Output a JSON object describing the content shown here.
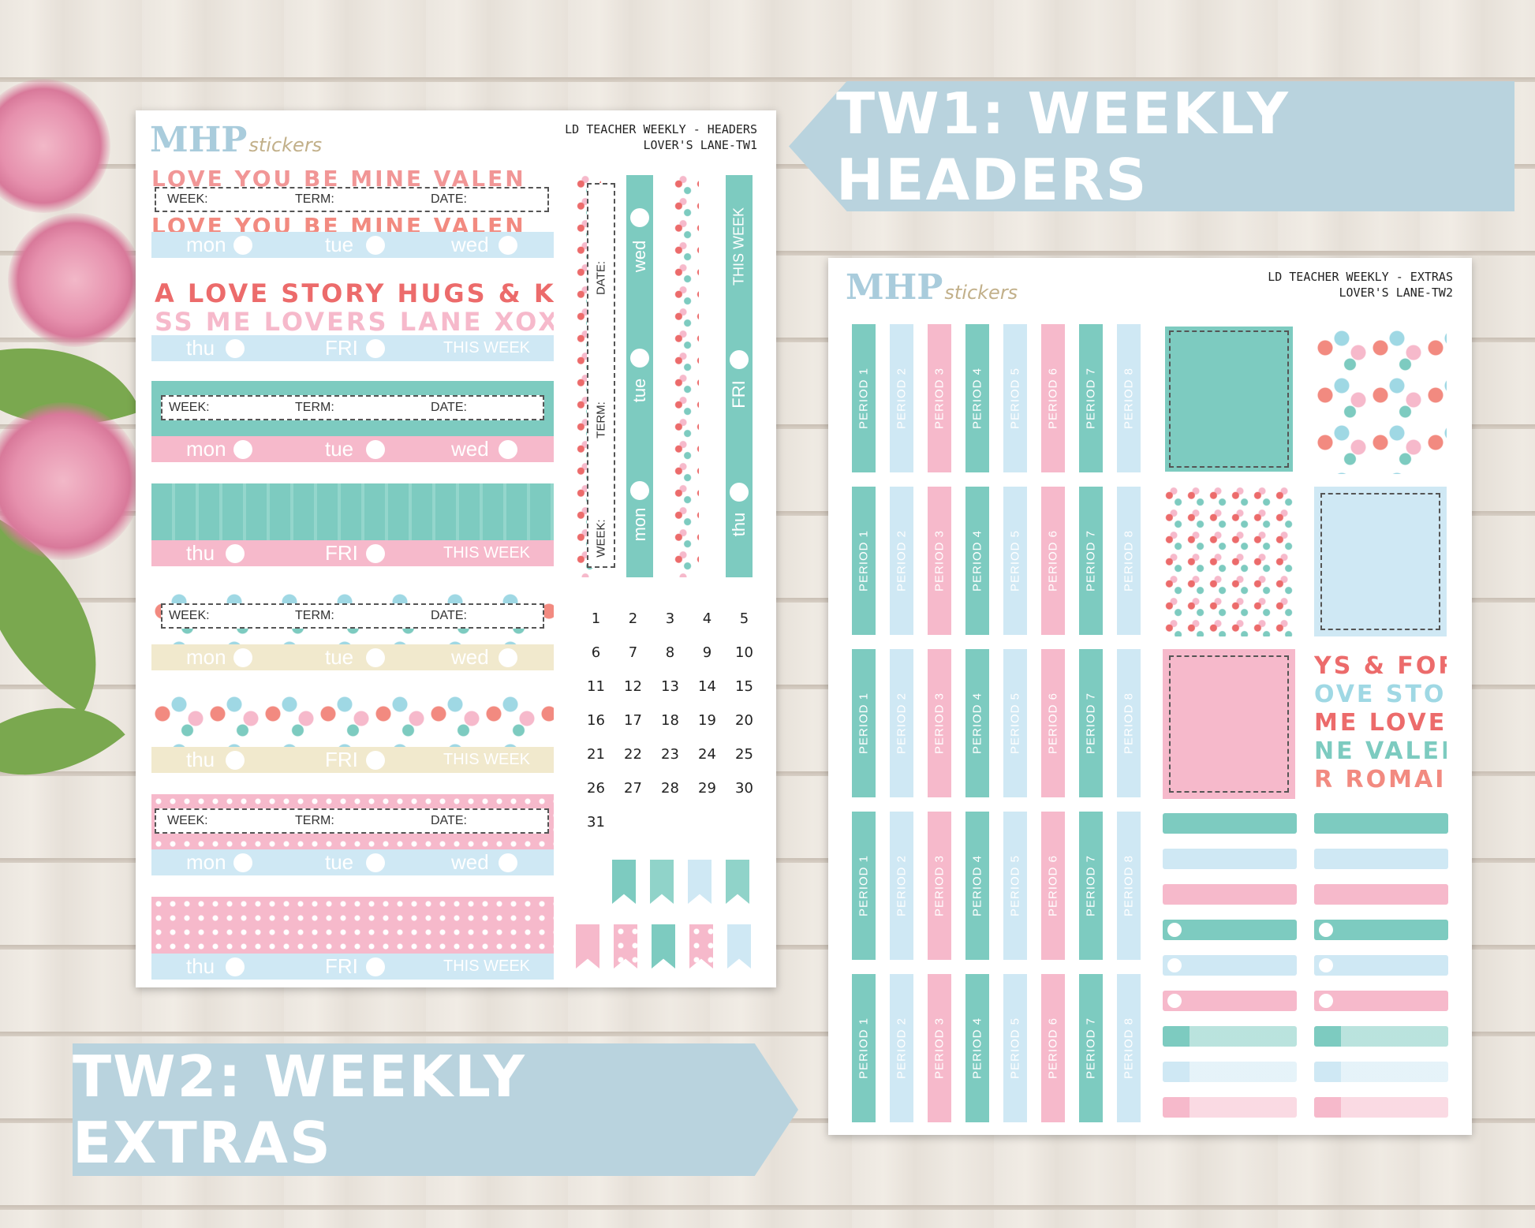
{
  "banners": {
    "tw1": "TW1: WEEKLY HEADERS",
    "tw2": "TW2: WEEKLY EXTRAS"
  },
  "sheet1": {
    "logo_main": "MHP",
    "logo_sub": "stickers",
    "title_line1": "LD TEACHER WEEKLY - HEADERS",
    "title_line2": "LOVER'S LANE-TW1",
    "fields": {
      "week": "WEEK:",
      "term": "TERM:",
      "date": "DATE:"
    },
    "days": {
      "mon": "mon",
      "tue": "tue",
      "wed": "wed",
      "thu": "thu",
      "fri": "fri",
      "fri_caps": "FRI",
      "this_week": "THIS WEEK"
    },
    "word_row1": "A LOVE STORY HUGS & KIS",
    "word_row2": "SS ME LOVERS LANE XOXO",
    "word_top": "LOVE YOU BE MINE VALEN",
    "vertical": {
      "date": "DATE:",
      "term": "TERM:",
      "week": "WEEK:",
      "mon": "mon",
      "tue": "tue",
      "wed": "wed",
      "thu": "thu",
      "fri": "FRI",
      "this_week": "THIS WEEK"
    },
    "calendar": [
      "1",
      "2",
      "3",
      "4",
      "5",
      "6",
      "7",
      "8",
      "9",
      "10",
      "11",
      "12",
      "13",
      "14",
      "15",
      "16",
      "17",
      "18",
      "19",
      "20",
      "21",
      "22",
      "23",
      "24",
      "25",
      "26",
      "27",
      "28",
      "29",
      "30",
      "31"
    ]
  },
  "sheet2": {
    "logo_main": "MHP",
    "logo_sub": "stickers",
    "title_line1": "LD TEACHER WEEKLY - EXTRAS",
    "title_line2": "LOVER'S LANE-TW2",
    "periods": [
      "PERIOD 1",
      "PERIOD 2",
      "PERIOD 3",
      "PERIOD 4",
      "PERIOD 5",
      "PERIOD 6",
      "PERIOD 7",
      "PERIOD 8"
    ],
    "word_lines": [
      "YS & FOR",
      "OVE STOI",
      "ME LOVEI",
      "NE VALEI",
      "R ROMAI"
    ]
  },
  "colors": {
    "teal": "#7dcbc0",
    "blue": "#cfe8f4",
    "pink": "#f6b9cb",
    "cream": "#f1e9cd",
    "banner": "#b9d3de",
    "coral": "#ec6b6b"
  }
}
